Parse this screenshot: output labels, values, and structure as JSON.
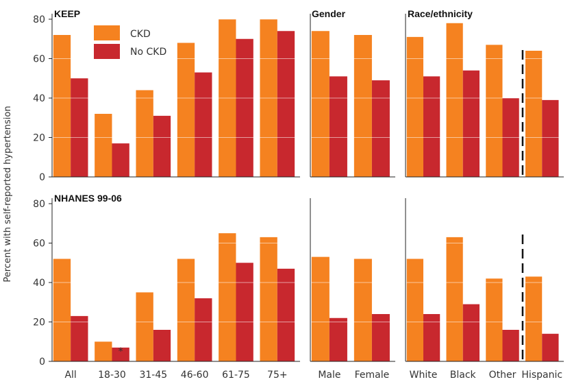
{
  "colors": {
    "ckd": "#F58220",
    "no_ckd": "#C8282E"
  },
  "legend": {
    "ckd": "CKD",
    "no_ckd": "No CKD"
  },
  "y_axis": {
    "label": "Percent with self-reported hypertension",
    "ticks": [
      0,
      20,
      40,
      60,
      80
    ],
    "ylim": [
      0,
      80
    ]
  },
  "annotation": {
    "marker": "*"
  },
  "chart_data": [
    {
      "type": "bar",
      "title": "KEEP",
      "categories": [
        "All",
        "18-30",
        "31-45",
        "46-60",
        "61-75",
        "75+"
      ],
      "series": [
        {
          "name": "CKD",
          "values": [
            72,
            32,
            44,
            68,
            80,
            80
          ]
        },
        {
          "name": "No CKD",
          "values": [
            50,
            17,
            31,
            53,
            70,
            74
          ]
        }
      ],
      "ylim": [
        0,
        80
      ],
      "ylabel": "Percent with self-reported hypertension",
      "legend": "top-left"
    },
    {
      "type": "bar",
      "title": "Gender",
      "categories": [
        "Male",
        "Female"
      ],
      "series": [
        {
          "name": "CKD",
          "values": [
            74,
            72
          ]
        },
        {
          "name": "No CKD",
          "values": [
            51,
            49
          ]
        }
      ],
      "ylim": [
        0,
        80
      ]
    },
    {
      "type": "bar",
      "title": "Race/ethnicity",
      "categories": [
        "White",
        "Black",
        "Other",
        "Hispanic"
      ],
      "series": [
        {
          "name": "CKD",
          "values": [
            71,
            78,
            67,
            64
          ]
        },
        {
          "name": "No CKD",
          "values": [
            51,
            54,
            40,
            39
          ]
        }
      ],
      "ylim": [
        0,
        80
      ],
      "separator_before": "Hispanic"
    },
    {
      "type": "bar",
      "title": "NHANES 99-06",
      "categories": [
        "All",
        "18-30",
        "31-45",
        "46-60",
        "61-75",
        "75+"
      ],
      "series": [
        {
          "name": "CKD",
          "values": [
            52,
            10,
            35,
            52,
            65,
            63
          ]
        },
        {
          "name": "No CKD",
          "values": [
            23,
            7,
            16,
            32,
            50,
            47
          ]
        }
      ],
      "ylim": [
        0,
        80
      ],
      "annotation": {
        "category": "18-30",
        "series": "No CKD",
        "text": "*"
      }
    },
    {
      "type": "bar",
      "title": "",
      "categories": [
        "Male",
        "Female"
      ],
      "series": [
        {
          "name": "CKD",
          "values": [
            53,
            52
          ]
        },
        {
          "name": "No CKD",
          "values": [
            22,
            24
          ]
        }
      ],
      "ylim": [
        0,
        80
      ]
    },
    {
      "type": "bar",
      "title": "",
      "categories": [
        "White",
        "Black",
        "Other",
        "Hispanic"
      ],
      "series": [
        {
          "name": "CKD",
          "values": [
            52,
            63,
            42,
            43
          ]
        },
        {
          "name": "No CKD",
          "values": [
            24,
            29,
            16,
            14
          ]
        }
      ],
      "ylim": [
        0,
        80
      ],
      "separator_before": "Hispanic"
    }
  ]
}
